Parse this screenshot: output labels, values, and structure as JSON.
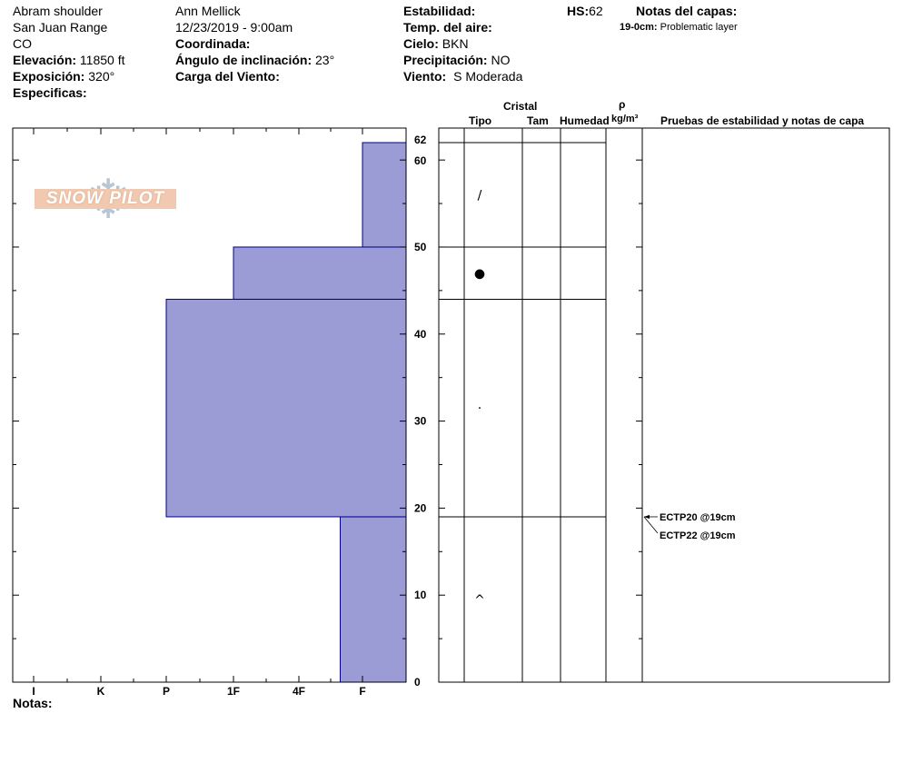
{
  "meta": {
    "location": "Abram shoulder",
    "range": "San Juan Range",
    "state": "CO",
    "elevation_label": "Elevación:",
    "elevation_value": "11850 ft",
    "aspect_label": "Exposición:",
    "aspect_value": "320°",
    "specifics_label": "Especificas:",
    "observer": "Ann Mellick",
    "datetime": "12/23/2019 - 9:00am",
    "coordinates_label": "Coordinada:",
    "slope_label": "Ángulo de inclinación:",
    "slope_value": "23°",
    "wind_load_label": "Carga del Viento:",
    "stability_label": "Estabilidad:",
    "air_temp_label": "Temp. del aire:",
    "sky_label": "Cielo:",
    "sky_value": "BKN",
    "precip_label": "Precipitación:",
    "precip_value": "NO",
    "wind_label": "Viento:",
    "wind_value": "S Moderada",
    "hs_label": "HS:",
    "hs_value": "62",
    "layer_notes_label": "Notas del capas:",
    "layer_note_depth": "19-0cm:",
    "layer_note_text": "Problematic layer",
    "notes_label": "Notas:",
    "logo_text": "SNOW PILOT"
  },
  "table_headers": {
    "crystal": "Cristal",
    "type": "Tipo",
    "size": "Tam",
    "moisture": "Humedad",
    "rho": "ρ",
    "density_unit": "kg/m³",
    "stability_notes": "Pruebas de estabilidad y notas de capa"
  },
  "stability_tests": [
    {
      "text": "ECTP20 @19cm",
      "depth_cm": 19
    },
    {
      "text": "ECTP22 @19cm",
      "depth_cm": 19
    }
  ],
  "chart_data": {
    "type": "bar",
    "title": "",
    "xlabel": "",
    "ylabel": "",
    "x_categories": [
      "I",
      "K",
      "P",
      "1F",
      "4F",
      "F"
    ],
    "ylim": [
      0,
      62
    ],
    "y_ticks": [
      0,
      10,
      20,
      30,
      40,
      50,
      60,
      62
    ],
    "y_tick_labels": [
      "0",
      "10",
      "20",
      "30",
      "40",
      "50",
      "60",
      "62"
    ],
    "grid": false,
    "bar_color": "#9b9bd5",
    "bar_edge_color": "#00008b",
    "layers": [
      {
        "bottom_cm": 0,
        "top_cm": 19,
        "hardness_index": 4.65
      },
      {
        "bottom_cm": 19,
        "top_cm": 44,
        "hardness_index": 2.0
      },
      {
        "bottom_cm": 44,
        "top_cm": 50,
        "hardness_index": 3.0
      },
      {
        "bottom_cm": 50,
        "top_cm": 62,
        "hardness_index": 5.0
      }
    ],
    "grain_symbols": [
      {
        "depth_cm": 56,
        "symbol": "/"
      },
      {
        "depth_cm": 47,
        "symbol": "●"
      },
      {
        "depth_cm": 31.5,
        "symbol": "·"
      },
      {
        "depth_cm": 9.5,
        "symbol": "^"
      }
    ]
  }
}
